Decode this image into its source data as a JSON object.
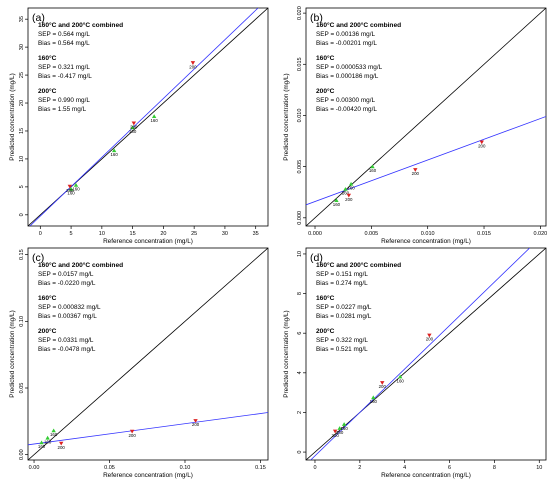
{
  "colors": {
    "fit_line": "#3333ff",
    "identity_line": "#000000",
    "series_160": "#33cc33",
    "series_200": "#dd2222"
  },
  "chart_data": [
    {
      "type": "scatter",
      "panel_label": "(a)",
      "xlabel": "Reference concentration (mg/L)",
      "ylabel": "Predicted concentration (mg/L)",
      "xlim": [
        -2,
        37
      ],
      "ylim": [
        -2,
        37
      ],
      "xticks": [
        0,
        5,
        10,
        15,
        20,
        25,
        30,
        35
      ],
      "yticks": [
        0,
        5,
        10,
        15,
        20,
        25,
        30,
        35
      ],
      "tick_labels_x": [
        "0",
        "5",
        "10",
        "15",
        "20",
        "25",
        "30",
        "35"
      ],
      "tick_labels_y": [
        "0",
        "5",
        "10",
        "15",
        "20",
        "25",
        "30",
        "35"
      ],
      "identity_line": true,
      "fit_line": [
        [
          -2,
          -2.33
        ],
        [
          37,
          38.7
        ]
      ],
      "stats": [
        {
          "heading": "160°C and 200°C combined",
          "lines": [
            "SEP = 0.564 mg/L",
            "Bias = 0.564 mg/L"
          ]
        },
        {
          "heading": "160°C",
          "lines": [
            "SEP = 0.321 mg/L",
            "Bias = -0.417 mg/L"
          ]
        },
        {
          "heading": "200°C",
          "lines": [
            "SEP = 0.990 mg/L",
            "Bias = 1.55 mg/L"
          ]
        }
      ],
      "series": [
        {
          "name": "160",
          "marker": "triangle-up",
          "color": "#33cc33",
          "points": [
            [
              5,
              4.6
            ],
            [
              5.8,
              5.3
            ],
            [
              12.0,
              11.5
            ],
            [
              15.0,
              15.6
            ],
            [
              18.5,
              17.6
            ]
          ],
          "labels": [
            "160",
            "160",
            "160",
            "160",
            "160"
          ]
        },
        {
          "name": "200",
          "marker": "triangle-down",
          "color": "#dd2222",
          "points": [
            [
              4.8,
              5.1
            ],
            [
              15.2,
              16.4
            ],
            [
              24.8,
              27.2
            ]
          ],
          "labels": [
            "200",
            "200",
            "200"
          ]
        }
      ]
    },
    {
      "type": "scatter",
      "panel_label": "(b)",
      "xlabel": "Reference concentration (mg/L)",
      "ylabel": "Predicted concentration (mg/L)",
      "xlim": [
        -0.0008,
        0.0205
      ],
      "ylim": [
        -0.0008,
        0.0205
      ],
      "xticks": [
        0,
        0.005,
        0.01,
        0.015,
        0.02
      ],
      "yticks": [
        0,
        0.005,
        0.01,
        0.015,
        0.02
      ],
      "tick_labels_x": [
        "0.000",
        "0.005",
        "0.010",
        "0.015",
        "0.020"
      ],
      "tick_labels_y": [
        "0.000",
        "0.005",
        "0.010",
        "0.015",
        "0.020"
      ],
      "identity_line": true,
      "fit_line": [
        [
          -0.0008,
          0.00127
        ],
        [
          0.0205,
          0.0099
        ]
      ],
      "stats": [
        {
          "heading": "160°C and 200°C combined",
          "lines": [
            "SEP = 0.00136 mg/L",
            "Bias = -0.00201 mg/L"
          ]
        },
        {
          "heading": "160°C",
          "lines": [
            "SEP = 0.0000533 mg/L",
            "Bias = 0.000186 mg/L"
          ]
        },
        {
          "heading": "200°C",
          "lines": [
            "SEP = 0.00300 mg/L",
            "Bias = -0.00420 mg/L"
          ]
        }
      ],
      "series": [
        {
          "name": "160",
          "marker": "triangle-up",
          "color": "#33cc33",
          "points": [
            [
              0.0019,
              0.0017
            ],
            [
              0.0027,
              0.0028
            ],
            [
              0.0032,
              0.0033
            ],
            [
              0.0051,
              0.005
            ]
          ],
          "labels": [
            "160",
            "160",
            "160",
            "160"
          ]
        },
        {
          "name": "200",
          "marker": "triangle-down",
          "color": "#dd2222",
          "points": [
            [
              0.003,
              0.0022
            ],
            [
              0.0089,
              0.0047
            ],
            [
              0.0148,
              0.0074
            ]
          ],
          "labels": [
            "200",
            "200",
            "200"
          ]
        }
      ]
    },
    {
      "type": "scatter",
      "panel_label": "(c)",
      "xlabel": "Reference concentration (mg/L)",
      "ylabel": "Predicted concentration (mg/L)",
      "xlim": [
        -0.004,
        0.155
      ],
      "ylim": [
        -0.004,
        0.155
      ],
      "xticks": [
        0,
        0.05,
        0.1,
        0.15
      ],
      "yticks": [
        0,
        0.05,
        0.1,
        0.15
      ],
      "tick_labels_x": [
        "0.00",
        "0.05",
        "0.10",
        "0.15"
      ],
      "tick_labels_y": [
        "0.00",
        "0.05",
        "0.10",
        "0.15"
      ],
      "identity_line": true,
      "fit_line": [
        [
          -0.004,
          0.0074
        ],
        [
          0.155,
          0.0316
        ]
      ],
      "stats": [
        {
          "heading": "160°C and 200°C combined",
          "lines": [
            "SEP = 0.0157 mg/L",
            "Bias = -0.0220 mg/L"
          ]
        },
        {
          "heading": "160°C",
          "lines": [
            "SEP = 0.000832 mg/L",
            "Bias = 0.00367 mg/L"
          ]
        },
        {
          "heading": "200°C",
          "lines": [
            "SEP = 0.0331 mg/L",
            "Bias = -0.0478 mg/L"
          ]
        }
      ],
      "series": [
        {
          "name": "160",
          "marker": "triangle-up",
          "color": "#33cc33",
          "points": [
            [
              0.005,
              0.009
            ],
            [
              0.009,
              0.0125
            ],
            [
              0.013,
              0.018
            ]
          ],
          "labels": [
            "160",
            "160",
            "160"
          ]
        },
        {
          "name": "200",
          "marker": "triangle-down",
          "color": "#dd2222",
          "points": [
            [
              0.018,
              0.0085
            ],
            [
              0.065,
              0.0175
            ],
            [
              0.107,
              0.0255
            ]
          ],
          "labels": [
            "200",
            "200",
            "200"
          ]
        }
      ]
    },
    {
      "type": "scatter",
      "panel_label": "(d)",
      "xlabel": "Reference concentration (mg/L)",
      "ylabel": "Predicted concentration (mg/L)",
      "xlim": [
        -0.4,
        10.3
      ],
      "ylim": [
        -0.4,
        10.3
      ],
      "xticks": [
        0,
        2,
        4,
        6,
        8,
        10
      ],
      "yticks": [
        0,
        2,
        4,
        6,
        8,
        10
      ],
      "tick_labels_x": [
        "0",
        "2",
        "4",
        "6",
        "8",
        "10"
      ],
      "tick_labels_y": [
        "0",
        "2",
        "4",
        "6",
        "8",
        "10"
      ],
      "identity_line": true,
      "fit_line": [
        [
          -0.4,
          -0.63
        ],
        [
          10.3,
          11.1
        ]
      ],
      "stats": [
        {
          "heading": "160°C and 200°C combined",
          "lines": [
            "SEP = 0.151 mg/L",
            "Bias = 0.274 mg/L"
          ]
        },
        {
          "heading": "160°C",
          "lines": [
            "SEP = 0.0227 mg/L",
            "Bias = 0.0281 mg/L"
          ]
        },
        {
          "heading": "200°C",
          "lines": [
            "SEP = 0.322 mg/L",
            "Bias = 0.521 mg/L"
          ]
        }
      ],
      "series": [
        {
          "name": "160",
          "marker": "triangle-up",
          "color": "#33cc33",
          "points": [
            [
              1.1,
              1.2
            ],
            [
              1.3,
              1.4
            ],
            [
              2.6,
              2.75
            ],
            [
              3.8,
              3.8
            ]
          ],
          "labels": [
            "160",
            "160",
            "160",
            "160"
          ]
        },
        {
          "name": "200",
          "marker": "triangle-down",
          "color": "#dd2222",
          "points": [
            [
              0.9,
              1.05
            ],
            [
              3.0,
              3.5
            ],
            [
              5.1,
              5.9
            ]
          ],
          "labels": [
            "200",
            "200",
            "200"
          ]
        }
      ]
    }
  ]
}
